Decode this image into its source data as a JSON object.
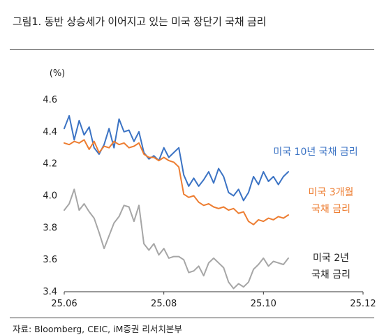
{
  "title": "그림1.  동반 상승세가 이어지고 있는 미국 장단기 국채 금리",
  "source": "자료: Bloomberg, CEIC, iM증권 리서치본부",
  "chart_data": {
    "type": "line",
    "ylabel": "(%)",
    "ylim": [
      3.4,
      4.6
    ],
    "yticks": [
      "3.4",
      "3.6",
      "3.8",
      "4.0",
      "4.2",
      "4.4",
      "4.6"
    ],
    "xticks": [
      "25.06",
      "25.08",
      "25.10",
      "25.12"
    ],
    "xlim": [
      0,
      6
    ],
    "grid": false,
    "series": [
      {
        "name_lines": [
          "미국 10년 국채 금리"
        ],
        "color": "#3b73c4",
        "x": [
          0.0,
          0.1,
          0.2,
          0.3,
          0.4,
          0.5,
          0.6,
          0.7,
          0.8,
          0.9,
          1.0,
          1.1,
          1.2,
          1.3,
          1.4,
          1.5,
          1.6,
          1.7,
          1.8,
          1.9,
          2.0,
          2.1,
          2.2,
          2.3,
          2.4,
          2.5,
          2.6,
          2.7,
          2.8,
          2.9,
          3.0,
          3.1,
          3.2,
          3.3,
          3.4,
          3.5,
          3.6,
          3.7,
          3.8,
          3.9,
          4.0,
          4.1,
          4.2,
          4.3,
          4.4,
          4.5
        ],
        "y": [
          4.42,
          4.5,
          4.35,
          4.47,
          4.38,
          4.43,
          4.3,
          4.26,
          4.32,
          4.42,
          4.3,
          4.48,
          4.4,
          4.41,
          4.34,
          4.4,
          4.27,
          4.23,
          4.25,
          4.22,
          4.3,
          4.24,
          4.27,
          4.3,
          4.13,
          4.06,
          4.11,
          4.06,
          4.1,
          4.15,
          4.08,
          4.17,
          4.12,
          4.02,
          4.0,
          4.04,
          3.97,
          4.02,
          4.12,
          4.07,
          4.15,
          4.09,
          4.12,
          4.07,
          4.12,
          4.15
        ]
      },
      {
        "name_lines": [
          "미국 3개월",
          "국채 금리"
        ],
        "color": "#ed7d31",
        "x": [
          0.0,
          0.1,
          0.2,
          0.3,
          0.4,
          0.5,
          0.6,
          0.7,
          0.8,
          0.9,
          1.0,
          1.1,
          1.2,
          1.3,
          1.4,
          1.5,
          1.6,
          1.7,
          1.8,
          1.9,
          2.0,
          2.1,
          2.2,
          2.3,
          2.4,
          2.5,
          2.6,
          2.7,
          2.8,
          2.9,
          3.0,
          3.1,
          3.2,
          3.3,
          3.4,
          3.5,
          3.6,
          3.7,
          3.8,
          3.9,
          4.0,
          4.1,
          4.2,
          4.3,
          4.4,
          4.5
        ],
        "y": [
          4.33,
          4.32,
          4.34,
          4.33,
          4.35,
          4.29,
          4.34,
          4.27,
          4.31,
          4.3,
          4.34,
          4.32,
          4.33,
          4.3,
          4.31,
          4.33,
          4.26,
          4.24,
          4.24,
          4.22,
          4.24,
          4.22,
          4.21,
          4.18,
          4.01,
          3.99,
          4.0,
          3.96,
          3.94,
          3.95,
          3.93,
          3.92,
          3.93,
          3.91,
          3.92,
          3.89,
          3.9,
          3.84,
          3.82,
          3.85,
          3.84,
          3.86,
          3.85,
          3.87,
          3.86,
          3.88
        ]
      },
      {
        "name_lines": [
          "미국 2년",
          "국채 금리"
        ],
        "color": "#a6a6a6",
        "x": [
          0.0,
          0.1,
          0.2,
          0.3,
          0.4,
          0.5,
          0.6,
          0.7,
          0.8,
          0.9,
          1.0,
          1.1,
          1.2,
          1.3,
          1.4,
          1.5,
          1.6,
          1.7,
          1.8,
          1.9,
          2.0,
          2.1,
          2.2,
          2.3,
          2.4,
          2.5,
          2.6,
          2.7,
          2.8,
          2.9,
          3.0,
          3.1,
          3.2,
          3.3,
          3.4,
          3.5,
          3.6,
          3.7,
          3.8,
          3.9,
          4.0,
          4.1,
          4.2,
          4.3,
          4.4,
          4.5
        ],
        "y": [
          3.91,
          3.95,
          4.04,
          3.91,
          3.95,
          3.9,
          3.86,
          3.77,
          3.67,
          3.75,
          3.83,
          3.87,
          3.94,
          3.93,
          3.84,
          3.94,
          3.7,
          3.66,
          3.7,
          3.63,
          3.67,
          3.61,
          3.62,
          3.62,
          3.6,
          3.52,
          3.53,
          3.56,
          3.5,
          3.58,
          3.61,
          3.58,
          3.55,
          3.46,
          3.42,
          3.45,
          3.43,
          3.46,
          3.54,
          3.57,
          3.61,
          3.56,
          3.59,
          3.58,
          3.57,
          3.61
        ]
      }
    ]
  }
}
